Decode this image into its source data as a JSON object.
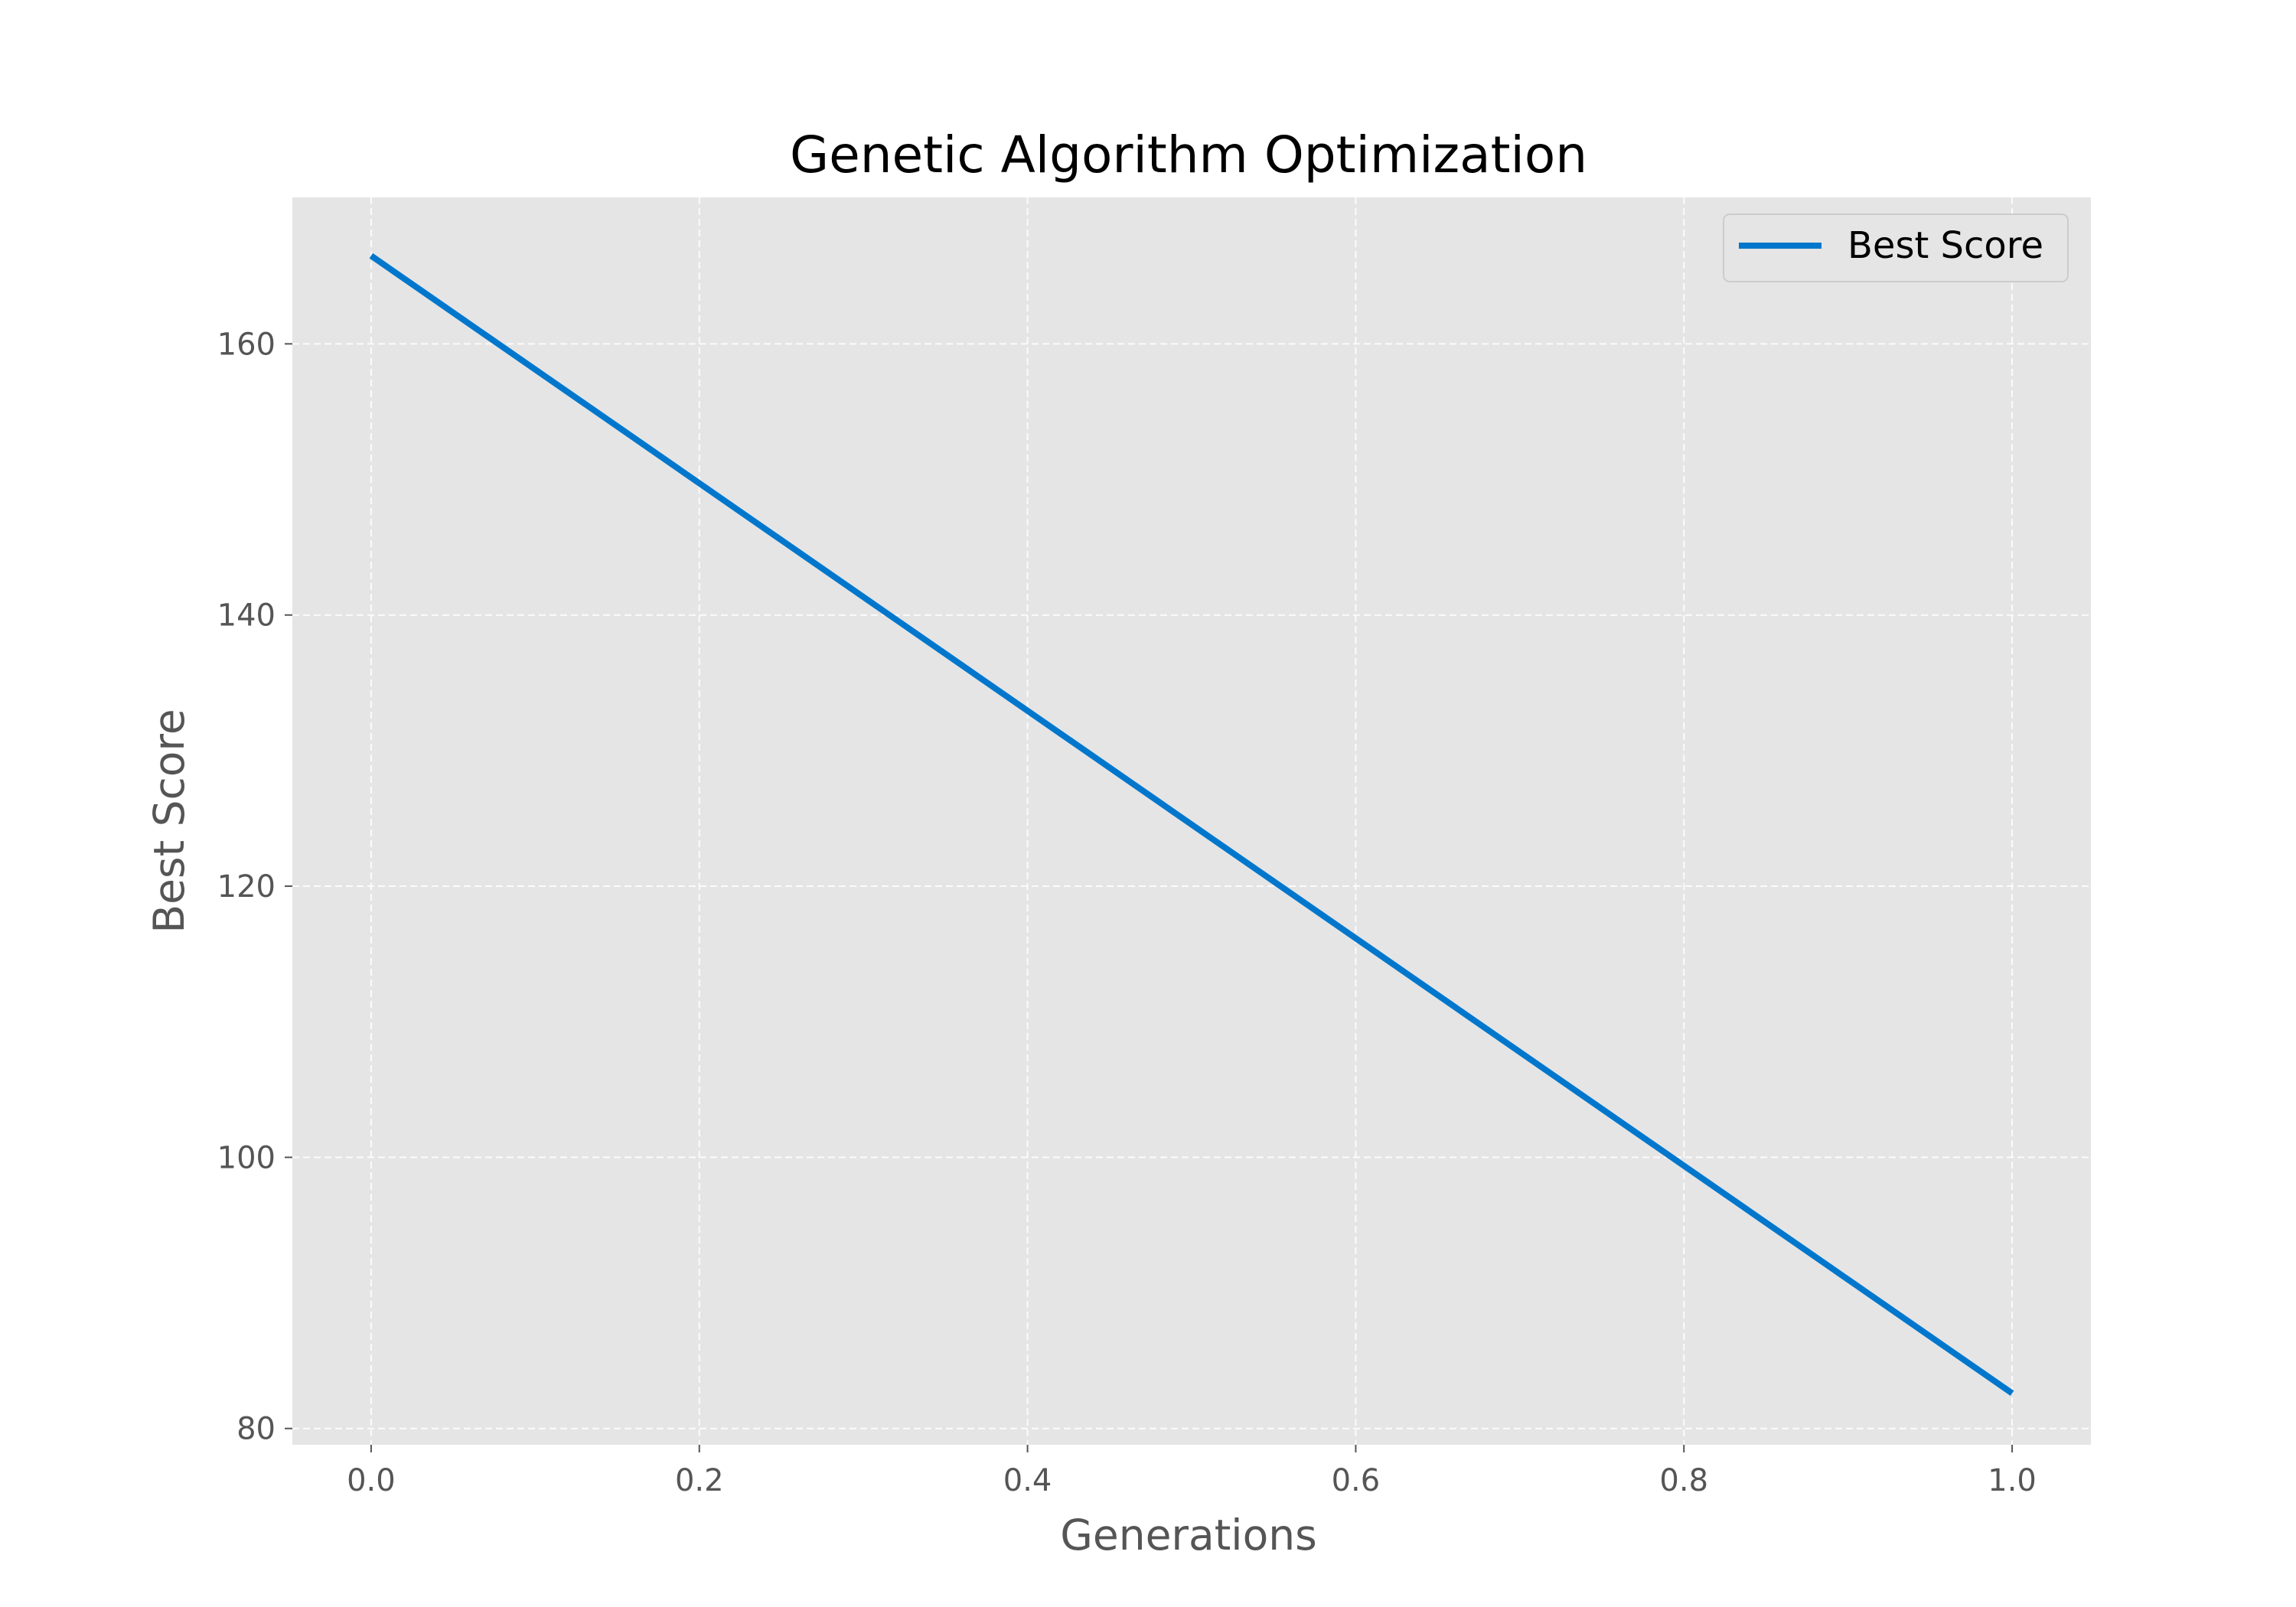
{
  "chart_data": {
    "type": "line",
    "title": "Genetic Algorithm Optimization",
    "xlabel": "Generations",
    "ylabel": "Best Score",
    "xlim": [
      -0.048,
      1.048
    ],
    "ylim": [
      78.8,
      170.8
    ],
    "xticks": [
      0.0,
      0.2,
      0.4,
      0.6,
      0.8,
      1.0
    ],
    "xtick_labels": [
      "0.0",
      "0.2",
      "0.4",
      "0.6",
      "0.8",
      "1.0"
    ],
    "yticks": [
      80,
      100,
      120,
      140,
      160
    ],
    "ytick_labels": [
      "80",
      "100",
      "120",
      "140",
      "160"
    ],
    "grid": true,
    "legend_position": "top-right",
    "series": [
      {
        "name": "Best Score",
        "color": "#0077cc",
        "x": [
          0.0,
          1.0
        ],
        "y": [
          166.5,
          82.6
        ]
      }
    ],
    "colors": {
      "plot_background": "#e5e5e5",
      "grid": "#ffffff",
      "text": "#555555"
    }
  }
}
